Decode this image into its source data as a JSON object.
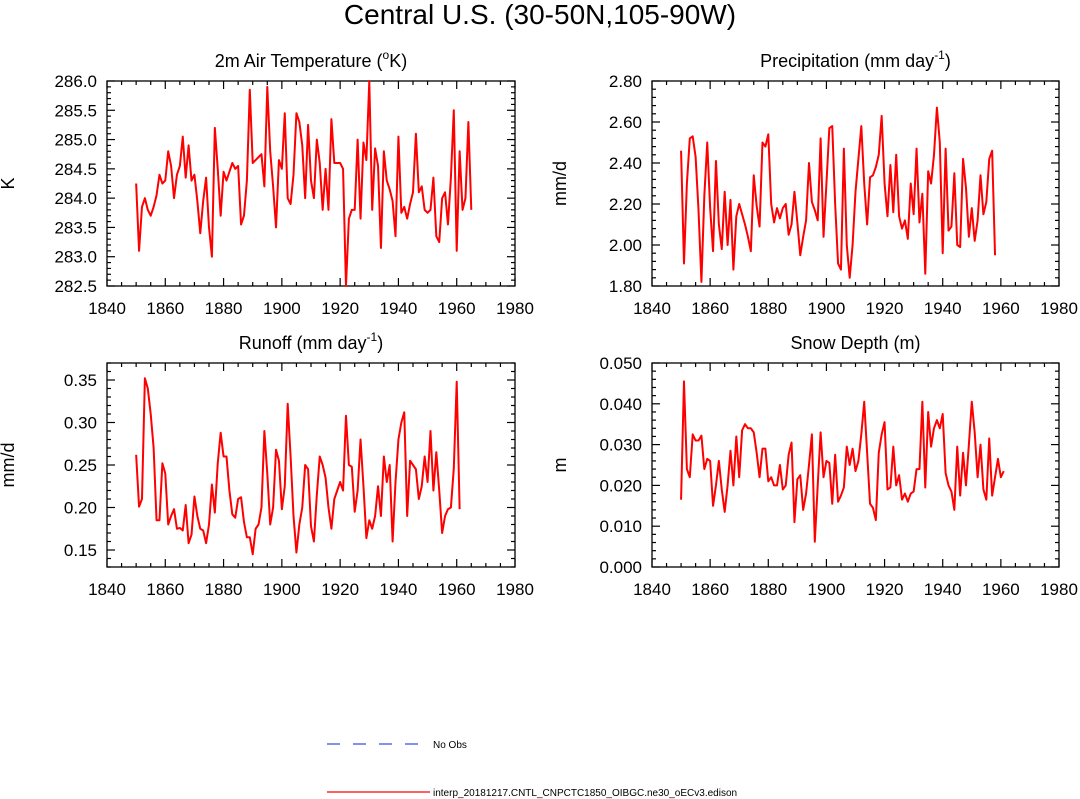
{
  "title": "Central U.S. (30-50N,105-90W)",
  "legend": {
    "entries": [
      {
        "label": "No Obs",
        "color": "#3b4fe0",
        "style": "dashed"
      },
      {
        "label": "interp_20181217.CNTL_CNPCTC1850_OIBGC.ne30_oECv3.edison",
        "color": "#ff0000",
        "style": "solid"
      }
    ]
  },
  "chart_data": [
    {
      "type": "line",
      "title": "2m Air Temperature (",
      "title_sup": "o",
      "title_post": "K)",
      "xlabel": "",
      "ylabel": "K",
      "xlim": [
        1840,
        1980
      ],
      "ylim": [
        282.5,
        286.0
      ],
      "xticks": [
        1840,
        1860,
        1880,
        1900,
        1920,
        1940,
        1960,
        1980
      ],
      "yticks": [
        282.5,
        283.0,
        283.5,
        284.0,
        284.5,
        285.0,
        285.5,
        286.0
      ],
      "yticklabels": [
        "282.5",
        "283.0",
        "283.5",
        "284.0",
        "284.5",
        "285.0",
        "285.5",
        "286.0"
      ],
      "series": [
        {
          "name": "interp_20181217.CNTL_CNPCTC1850_OIBGC.ne30_oECv3.edison",
          "x_start": 1850,
          "values": [
            284.25,
            283.1,
            283.85,
            284.0,
            283.8,
            283.7,
            283.85,
            284.05,
            284.4,
            284.25,
            284.3,
            284.8,
            284.55,
            284.0,
            284.4,
            284.55,
            285.05,
            284.35,
            284.9,
            284.3,
            284.4,
            283.95,
            283.4,
            283.95,
            284.35,
            283.5,
            283.0,
            285.2,
            284.5,
            283.7,
            284.45,
            284.3,
            284.45,
            284.6,
            284.5,
            284.55,
            283.55,
            283.7,
            284.3,
            285.85,
            284.6,
            284.65,
            284.7,
            284.75,
            284.2,
            285.9,
            284.8,
            284.2,
            283.5,
            284.65,
            284.5,
            285.45,
            284.0,
            283.9,
            284.4,
            285.45,
            285.3,
            284.9,
            284.0,
            285.25,
            284.3,
            284.0,
            285.0,
            284.6,
            283.8,
            284.5,
            283.8,
            285.35,
            284.6,
            284.6,
            284.6,
            284.5,
            282.5,
            283.65,
            283.8,
            283.8,
            285.0,
            283.65,
            284.95,
            284.65,
            286.0,
            283.8,
            284.85,
            284.55,
            283.15,
            284.8,
            284.3,
            284.15,
            283.95,
            283.35,
            285.05,
            283.75,
            283.85,
            283.65,
            283.9,
            284.1,
            285.1,
            284.1,
            284.2,
            283.8,
            283.75,
            283.8,
            284.35,
            283.35,
            283.25,
            284.0,
            284.1,
            283.55,
            284.35,
            285.5,
            283.1,
            284.8,
            283.8,
            284.0,
            285.3,
            283.8
          ]
        }
      ]
    },
    {
      "type": "line",
      "title": "Precipitation (mm day",
      "title_sup": "-1",
      "title_post": ")",
      "xlabel": "",
      "ylabel": "mm/d",
      "xlim": [
        1840,
        1980
      ],
      "ylim": [
        1.8,
        2.8
      ],
      "xticks": [
        1840,
        1860,
        1880,
        1900,
        1920,
        1940,
        1960,
        1980
      ],
      "yticks": [
        1.8,
        2.0,
        2.2,
        2.4,
        2.6,
        2.8
      ],
      "yticklabels": [
        "1.80",
        "2.00",
        "2.20",
        "2.40",
        "2.60",
        "2.80"
      ],
      "series": [
        {
          "name": "interp_20181217.CNTL_CNPCTC1850_OIBGC.ne30_oECv3.edison",
          "x_start": 1850,
          "values": [
            2.46,
            1.91,
            2.3,
            2.52,
            2.53,
            2.43,
            2.17,
            1.82,
            2.24,
            2.5,
            2.18,
            1.97,
            2.41,
            2.1,
            1.98,
            2.26,
            2.0,
            2.22,
            1.88,
            2.14,
            2.2,
            2.15,
            2.1,
            2.04,
            1.97,
            2.34,
            2.19,
            2.09,
            2.5,
            2.48,
            2.54,
            2.2,
            2.11,
            2.18,
            2.13,
            2.18,
            2.2,
            2.05,
            2.1,
            2.26,
            2.11,
            1.95,
            2.04,
            2.12,
            2.4,
            2.21,
            2.17,
            2.12,
            2.52,
            2.04,
            2.3,
            2.57,
            2.58,
            2.2,
            1.91,
            1.88,
            2.47,
            2.0,
            1.84,
            2.0,
            2.26,
            2.42,
            2.58,
            2.3,
            2.1,
            2.33,
            2.34,
            2.38,
            2.44,
            2.63,
            2.3,
            2.14,
            2.39,
            2.16,
            2.44,
            2.14,
            2.08,
            2.12,
            2.03,
            2.3,
            2.15,
            2.47,
            2.11,
            2.25,
            1.86,
            2.36,
            2.3,
            2.44,
            2.67,
            2.5,
            1.96,
            2.47,
            2.07,
            2.09,
            2.35,
            2.0,
            1.99,
            2.42,
            2.28,
            2.04,
            2.18,
            2.02,
            2.12,
            2.34,
            2.15,
            2.21,
            2.42,
            2.46,
            1.95
          ]
        }
      ]
    },
    {
      "type": "line",
      "title": "Runoff (mm day",
      "title_sup": "-1",
      "title_post": ")",
      "xlabel": "",
      "ylabel": "mm/d",
      "xlim": [
        1840,
        1980
      ],
      "ylim": [
        0.13,
        0.37
      ],
      "xticks": [
        1840,
        1860,
        1880,
        1900,
        1920,
        1940,
        1960,
        1980
      ],
      "yticks": [
        0.15,
        0.2,
        0.25,
        0.3,
        0.35
      ],
      "yticklabels": [
        "0.15",
        "0.20",
        "0.25",
        "0.30",
        "0.35"
      ],
      "series": [
        {
          "name": "interp_20181217.CNTL_CNPCTC1850_OIBGC.ne30_oECv3.edison",
          "x_start": 1850,
          "values": [
            0.262,
            0.201,
            0.21,
            0.352,
            0.34,
            0.31,
            0.27,
            0.185,
            0.185,
            0.252,
            0.24,
            0.18,
            0.19,
            0.198,
            0.175,
            0.176,
            0.173,
            0.203,
            0.158,
            0.168,
            0.213,
            0.19,
            0.175,
            0.173,
            0.158,
            0.18,
            0.227,
            0.194,
            0.252,
            0.288,
            0.26,
            0.26,
            0.22,
            0.192,
            0.188,
            0.21,
            0.212,
            0.183,
            0.165,
            0.165,
            0.145,
            0.175,
            0.18,
            0.2,
            0.29,
            0.24,
            0.18,
            0.2,
            0.268,
            0.255,
            0.198,
            0.225,
            0.322,
            0.26,
            0.19,
            0.147,
            0.18,
            0.2,
            0.25,
            0.245,
            0.178,
            0.16,
            0.215,
            0.26,
            0.25,
            0.235,
            0.2,
            0.175,
            0.21,
            0.22,
            0.23,
            0.22,
            0.308,
            0.25,
            0.248,
            0.195,
            0.22,
            0.28,
            0.225,
            0.164,
            0.185,
            0.175,
            0.19,
            0.225,
            0.19,
            0.26,
            0.23,
            0.25,
            0.16,
            0.23,
            0.28,
            0.3,
            0.312,
            0.19,
            0.255,
            0.25,
            0.245,
            0.21,
            0.225,
            0.26,
            0.23,
            0.29,
            0.22,
            0.265,
            0.22,
            0.17,
            0.19,
            0.198,
            0.2,
            0.246,
            0.348,
            0.198
          ]
        }
      ]
    },
    {
      "type": "line",
      "title": "Snow Depth (m)",
      "title_sup": "",
      "title_post": "",
      "xlabel": "",
      "ylabel": "m",
      "xlim": [
        1840,
        1980
      ],
      "ylim": [
        0.0,
        0.05
      ],
      "xticks": [
        1840,
        1860,
        1880,
        1900,
        1920,
        1940,
        1960,
        1980
      ],
      "yticks": [
        0.0,
        0.01,
        0.02,
        0.03,
        0.04,
        0.05
      ],
      "yticklabels": [
        "0.000",
        "0.010",
        "0.020",
        "0.030",
        "0.040",
        "0.050"
      ],
      "series": [
        {
          "name": "interp_20181217.CNTL_CNPCTC1850_OIBGC.ne30_oECv3.edison",
          "x_start": 1850,
          "values": [
            0.0165,
            0.0455,
            0.024,
            0.022,
            0.0325,
            0.031,
            0.031,
            0.0322,
            0.024,
            0.0265,
            0.026,
            0.015,
            0.02,
            0.026,
            0.019,
            0.0135,
            0.02,
            0.0285,
            0.02,
            0.032,
            0.022,
            0.0335,
            0.035,
            0.034,
            0.034,
            0.033,
            0.028,
            0.022,
            0.029,
            0.029,
            0.021,
            0.022,
            0.02,
            0.02,
            0.025,
            0.019,
            0.02,
            0.0275,
            0.0305,
            0.011,
            0.0215,
            0.0225,
            0.014,
            0.018,
            0.025,
            0.0325,
            0.0062,
            0.02,
            0.033,
            0.022,
            0.026,
            0.0255,
            0.0155,
            0.0275,
            0.016,
            0.0175,
            0.0195,
            0.0295,
            0.025,
            0.029,
            0.0235,
            0.026,
            0.0325,
            0.0405,
            0.028,
            0.0155,
            0.0145,
            0.0115,
            0.028,
            0.0325,
            0.0355,
            0.019,
            0.0195,
            0.0295,
            0.02,
            0.0225,
            0.0165,
            0.018,
            0.016,
            0.018,
            0.0185,
            0.024,
            0.024,
            0.0405,
            0.0195,
            0.038,
            0.0295,
            0.034,
            0.036,
            0.034,
            0.0375,
            0.023,
            0.02,
            0.0185,
            0.014,
            0.0295,
            0.0175,
            0.028,
            0.02,
            0.03,
            0.0405,
            0.033,
            0.022,
            0.03,
            0.019,
            0.0165,
            0.0315,
            0.0175,
            0.022,
            0.0265,
            0.022,
            0.0235
          ]
        }
      ]
    }
  ]
}
